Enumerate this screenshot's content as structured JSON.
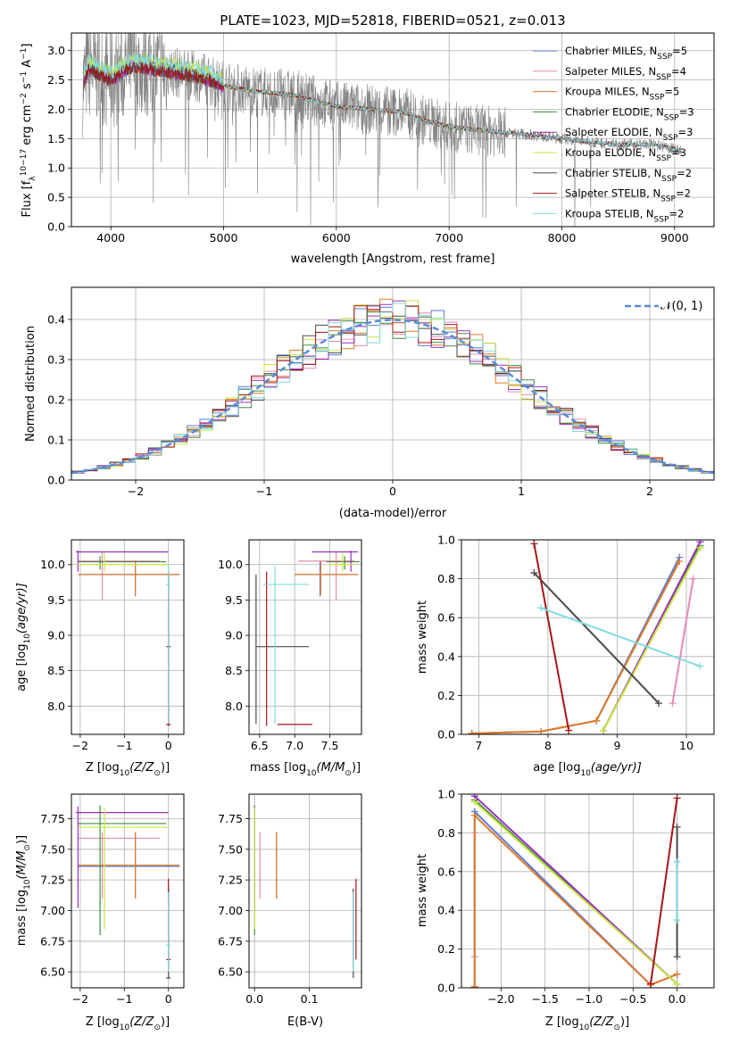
{
  "models": [
    {
      "name": "Chabrier MILES",
      "nssp": "5",
      "color": "#5b7bd6"
    },
    {
      "name": "Salpeter MILES",
      "nssp": "4",
      "color": "#e88ab8"
    },
    {
      "name": "Kroupa MILES",
      "nssp": "5",
      "color": "#e07b28"
    },
    {
      "name": "Chabrier ELODIE",
      "nssp": "3",
      "color": "#3d8c3d"
    },
    {
      "name": "Salpeter ELODIE",
      "nssp": "3",
      "color": "#9b2fbf"
    },
    {
      "name": "Kroupa ELODIE",
      "nssp": "3",
      "color": "#c8e840"
    },
    {
      "name": "Chabrier STELIB",
      "nssp": "2",
      "color": "#4a4a4a"
    },
    {
      "name": "Salpeter STELIB",
      "nssp": "2",
      "color": "#a81414"
    },
    {
      "name": "Kroupa STELIB",
      "nssp": "2",
      "color": "#7fdce0"
    }
  ],
  "chart_data": [
    {
      "id": "spectrum",
      "type": "line",
      "title": "PLATE=1023, MJD=52818, FIBERID=0521, z=0.013",
      "xlabel": "wavelength [Angstrom, rest frame]",
      "ylabel_parts": [
        "Flux [f",
        "λ",
        "10",
        "−17",
        " erg cm",
        "−2",
        " s",
        "−1",
        " A",
        "−1",
        "]"
      ],
      "xlim": [
        3650,
        9350
      ],
      "ylim": [
        0,
        3.3
      ],
      "xticks": [
        4000,
        5000,
        6000,
        7000,
        8000,
        9000
      ],
      "yticks": [
        0.0,
        0.5,
        1.0,
        1.5,
        2.0,
        2.5,
        3.0
      ],
      "legend_loc": "upper right",
      "data_color": "#808080",
      "data_x_range": [
        3750,
        9060
      ],
      "data_fluxes": [
        [
          3750,
          2.4
        ],
        [
          3800,
          2.7
        ],
        [
          3900,
          2.6
        ],
        [
          4000,
          2.5
        ],
        [
          4200,
          2.75
        ],
        [
          4500,
          2.65
        ],
        [
          4800,
          2.55
        ],
        [
          5000,
          2.4
        ],
        [
          5300,
          2.3
        ],
        [
          5600,
          2.25
        ],
        [
          6000,
          2.05
        ],
        [
          6300,
          2.0
        ],
        [
          6600,
          1.95
        ],
        [
          6800,
          1.8
        ],
        [
          7000,
          1.7
        ],
        [
          7400,
          1.62
        ],
        [
          7800,
          1.55
        ],
        [
          8200,
          1.45
        ],
        [
          8500,
          1.4
        ],
        [
          8800,
          1.4
        ],
        [
          9060,
          1.3
        ]
      ]
    },
    {
      "id": "residuals",
      "type": "step",
      "xlabel": "(data-model)/error",
      "ylabel": "Normed distribution",
      "xlim": [
        -2.5,
        2.5
      ],
      "ylim": [
        0,
        0.48
      ],
      "xticks": [
        -2,
        -1,
        0,
        1,
        2
      ],
      "yticks": [
        0.0,
        0.1,
        0.2,
        0.3,
        0.4
      ],
      "legend_loc": "upper right",
      "normal_label": "𝒩(0, 1)",
      "normal_color": "#5b8bd9"
    },
    {
      "id": "age-vs-Z",
      "type": "errorbar",
      "xlabel_parts": [
        "Z [log",
        "10",
        "(Z/Z",
        "⊙",
        ")]"
      ],
      "ylabel_parts": [
        "age  [log",
        "10",
        "(age/yr)]"
      ],
      "xlim": [
        -2.2,
        0.35
      ],
      "ylim": [
        7.6,
        10.35
      ],
      "xticks": [
        -2,
        -1,
        0
      ],
      "yticks": [
        8.0,
        8.5,
        9.0,
        9.5,
        10.0
      ]
    },
    {
      "id": "age-vs-mass",
      "type": "errorbar",
      "xlabel_parts": [
        "mass [log",
        "10",
        "(M/M",
        "⊙",
        ")]"
      ],
      "xlim": [
        6.35,
        7.95
      ],
      "ylim": [
        7.6,
        10.35
      ],
      "xticks": [
        6.5,
        7.0,
        7.5
      ],
      "yticks": [
        8.0,
        8.5,
        9.0,
        9.5,
        10.0
      ]
    },
    {
      "id": "massweight-vs-age",
      "type": "line",
      "xlabel_parts": [
        "age  [log",
        "10",
        "(age/yr)]"
      ],
      "ylabel": "mass weight",
      "xlim": [
        6.75,
        10.4
      ],
      "ylim": [
        0,
        1.0
      ],
      "xticks": [
        7,
        8,
        9,
        10
      ],
      "yticks": [
        0.0,
        0.2,
        0.4,
        0.6,
        0.8,
        1.0
      ]
    },
    {
      "id": "mass-vs-Z",
      "type": "errorbar",
      "xlabel_parts": [
        "Z [log",
        "10",
        "(Z/Z",
        "⊙",
        ")]"
      ],
      "ylabel_parts": [
        "mass [log",
        "10",
        "(M/M",
        "⊙",
        ")]"
      ],
      "xlim": [
        -2.2,
        0.35
      ],
      "ylim": [
        6.37,
        7.95
      ],
      "xticks": [
        -2,
        -1,
        0
      ],
      "yticks": [
        6.5,
        6.75,
        7.0,
        7.25,
        7.5,
        7.75
      ]
    },
    {
      "id": "mass-vs-ebv",
      "type": "errorbar",
      "xlabel": "E(B-V)",
      "xlim": [
        -0.01,
        0.195
      ],
      "ylim": [
        6.37,
        7.95
      ],
      "xticks": [
        0.0,
        0.1
      ],
      "yticks": [
        6.5,
        6.75,
        7.0,
        7.25,
        7.5,
        7.75
      ]
    },
    {
      "id": "massweight-vs-Z",
      "type": "line",
      "xlabel_parts": [
        "Z [log",
        "10",
        "(Z/Z",
        "⊙",
        ")]"
      ],
      "ylabel": "mass weight",
      "xlim": [
        -2.45,
        0.42
      ],
      "ylim": [
        0,
        1.0
      ],
      "xticks": [
        -2.0,
        -1.5,
        -1.0,
        -0.5,
        0.0
      ],
      "yticks": [
        0.0,
        0.2,
        0.4,
        0.6,
        0.8,
        1.0
      ]
    }
  ],
  "ssp": [
    {
      "model": 0,
      "pts": [
        [
          6.9,
          0.005,
          -2.3,
          6.8
        ],
        [
          7.9,
          0.015,
          -0.3,
          6.7
        ],
        [
          8.7,
          0.07,
          0.0,
          7.0
        ],
        [
          9.9,
          0.91,
          -2.3,
          7.35
        ]
      ]
    },
    {
      "model": 1,
      "pts": [
        [
          9.8,
          0.16,
          -2.3,
          7.1
        ],
        [
          10.1,
          0.8,
          -2.3,
          7.59
        ]
      ]
    },
    {
      "model": 2,
      "pts": [
        [
          6.9,
          0.005,
          -2.3,
          6.8
        ],
        [
          7.9,
          0.015,
          -0.3,
          6.7
        ],
        [
          8.7,
          0.07,
          0.0,
          7.0
        ],
        [
          9.9,
          0.89,
          -2.3,
          7.35
        ]
      ]
    },
    {
      "model": 3,
      "pts": [
        [
          8.8,
          0.02,
          0.0,
          6.8
        ],
        [
          10.2,
          0.97,
          -2.3,
          7.8
        ]
      ]
    },
    {
      "model": 4,
      "pts": [
        [
          8.8,
          0.02,
          0.0,
          6.8
        ],
        [
          10.2,
          0.99,
          -2.3,
          7.8
        ]
      ]
    },
    {
      "model": 5,
      "pts": [
        [
          8.8,
          0.02,
          0.0,
          6.8
        ],
        [
          10.2,
          0.96,
          -2.3,
          7.67
        ]
      ]
    },
    {
      "model": 6,
      "pts": [
        [
          7.8,
          0.83,
          0.0,
          6.45
        ],
        [
          9.6,
          0.16,
          0.0,
          6.6
        ]
      ]
    },
    {
      "model": 7,
      "pts": [
        [
          7.8,
          0.98,
          0.0,
          6.6
        ],
        [
          8.3,
          0.02,
          -0.3,
          6.6
        ]
      ]
    },
    {
      "model": 8,
      "pts": [
        [
          7.9,
          0.65,
          0.0,
          6.72
        ],
        [
          10.2,
          0.35,
          0.0,
          6.72
        ]
      ]
    }
  ],
  "global": [
    {
      "model": 0,
      "Z": -0.75,
      "Zlo": -2.05,
      "Zhi": 0.25,
      "age": 9.86,
      "agelo": 9.55,
      "agehi": 10.05,
      "mass": 7.36,
      "masslo": 7.1,
      "masshi": 7.64,
      "mlo": 7.0,
      "mhi": 7.9,
      "ebv": 0.04
    },
    {
      "model": 1,
      "Z": -1.5,
      "Zlo": -2.05,
      "Zhi": -0.2,
      "age": 10.05,
      "agelo": 9.5,
      "agehi": 10.18,
      "mass": 7.59,
      "masslo": 7.1,
      "masshi": 7.64,
      "mlo": 7.05,
      "mhi": 7.85,
      "ebv": 0.01
    },
    {
      "model": 2,
      "Z": -0.75,
      "Zlo": -2.05,
      "Zhi": 0.25,
      "age": 9.86,
      "agelo": 9.57,
      "agehi": 10.05,
      "mass": 7.37,
      "masslo": 7.1,
      "masshi": 7.64,
      "mlo": 7.0,
      "mhi": 7.9,
      "ebv": 0.04
    },
    {
      "model": 3,
      "Z": -1.55,
      "Zlo": -2.05,
      "Zhi": -0.05,
      "age": 10.04,
      "agelo": 9.93,
      "agehi": 10.12,
      "mass": 7.71,
      "masslo": 6.8,
      "masshi": 7.86,
      "mlo": 7.45,
      "mhi": 7.92,
      "ebv": 0.0
    },
    {
      "model": 4,
      "Z": -2.05,
      "Zlo": -2.1,
      "Zhi": 0.0,
      "age": 10.18,
      "agelo": 9.9,
      "agehi": 10.2,
      "mass": 7.8,
      "masslo": 7.02,
      "masshi": 7.85,
      "mlo": 7.25,
      "mhi": 7.9,
      "ebv": 0.0
    },
    {
      "model": 5,
      "Z": -1.45,
      "Zlo": -2.05,
      "Zhi": 0.0,
      "age": 10.0,
      "agelo": 9.9,
      "agehi": 10.17,
      "mass": 7.68,
      "masslo": 6.85,
      "masshi": 7.84,
      "mlo": 7.5,
      "mhi": 7.85,
      "ebv": 0.0
    },
    {
      "model": 6,
      "Z": 0.0,
      "Zlo": -0.05,
      "Zhi": 0.05,
      "age": 8.84,
      "agelo": 7.75,
      "agehi": 9.86,
      "mass": 6.45,
      "masslo": 6.45,
      "masshi": 7.18,
      "mlo": 6.45,
      "mhi": 7.2,
      "ebv": 0.18
    },
    {
      "model": 7,
      "Z": 0.0,
      "Zlo": -0.05,
      "Zhi": 0.05,
      "age": 7.74,
      "agelo": 7.72,
      "agehi": 9.9,
      "mass": 6.6,
      "masslo": 6.6,
      "masshi": 7.26,
      "mlo": 6.75,
      "mhi": 7.25,
      "ebv": 0.185
    },
    {
      "model": 8,
      "Z": 0.0,
      "Zlo": -0.05,
      "Zhi": 0.05,
      "age": 9.72,
      "agelo": 7.75,
      "agehi": 9.98,
      "mass": 6.72,
      "masslo": 6.5,
      "masshi": 7.15,
      "mlo": 6.55,
      "mhi": 7.2,
      "ebv": 0.18
    }
  ]
}
